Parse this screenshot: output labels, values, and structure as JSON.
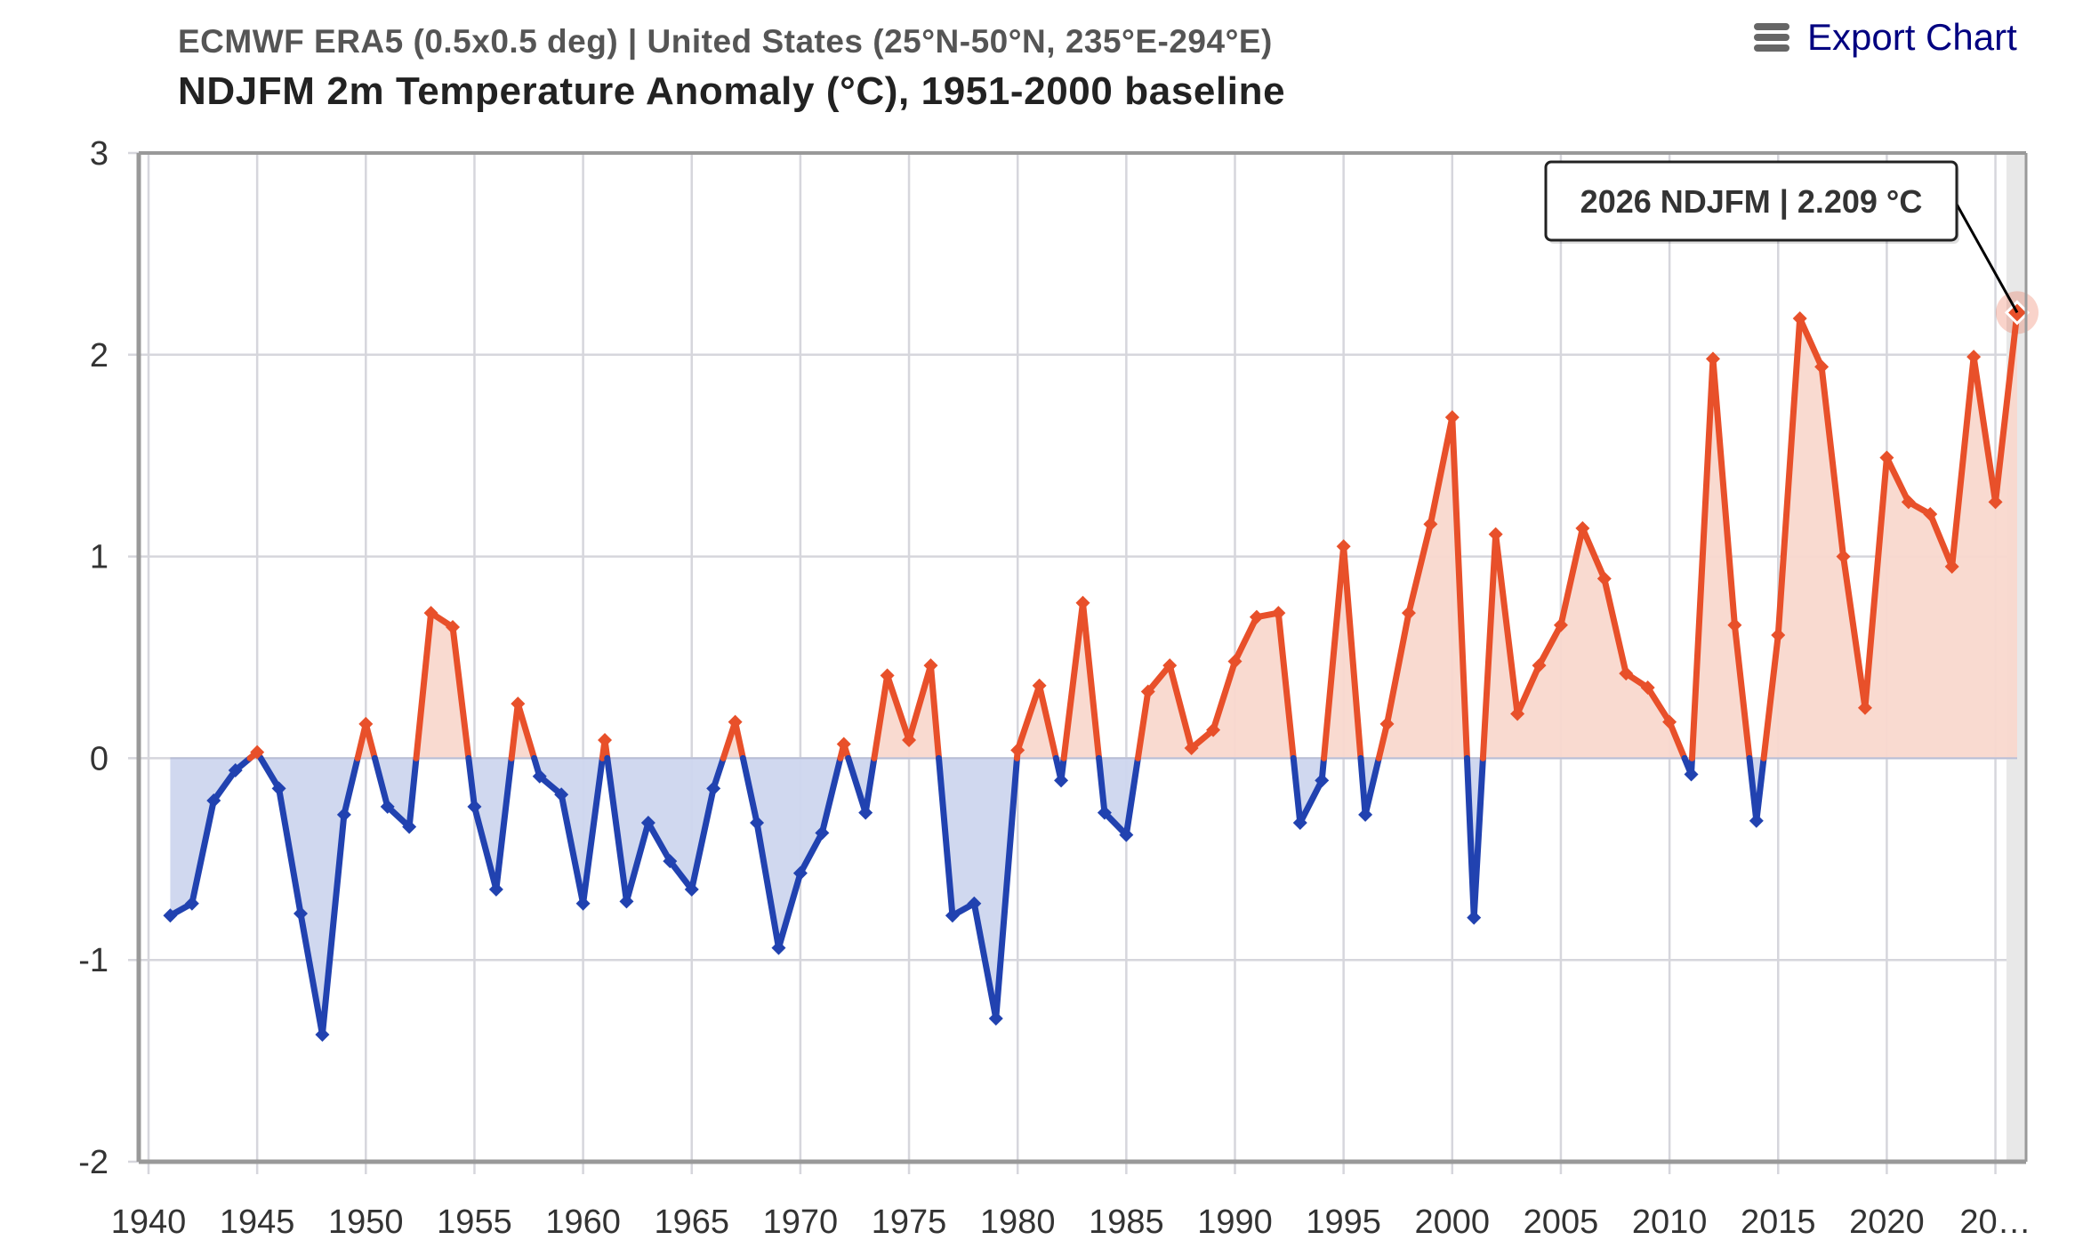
{
  "header": {
    "subtitle": "ECMWF ERA5 (0.5x0.5 deg) | United States (25°N-50°N, 235°E-294°E)",
    "title": "NDJFM 2m Temperature Anomaly (°C), 1951-2000 baseline"
  },
  "toolbar": {
    "export_label": "Export Chart",
    "export_icon": "hamburger-menu-icon"
  },
  "colors": {
    "positive_line": "#E8502A",
    "positive_fill": "#F9D8CE",
    "negative_line": "#2142B0",
    "negative_fill": "#CDD6EE",
    "grid": "#D6D6DC",
    "axis": "#999999",
    "hover_band": "#E8E8E8",
    "export_text": "#000080"
  },
  "tooltip": {
    "text": "2026 NDJFM | 2.209 °C",
    "year": 2026
  },
  "chart_data": {
    "type": "area",
    "title": "NDJFM 2m Temperature Anomaly (°C), 1951-2000 baseline",
    "subtitle": "ECMWF ERA5 (0.5x0.5 deg) | United States (25°N-50°N, 235°E-294°E)",
    "xlabel": "",
    "ylabel": "",
    "xlim": [
      1939.6,
      2027.0
    ],
    "ylim": [
      -2,
      3
    ],
    "grid": true,
    "legend": "none",
    "yticks": [
      3,
      2,
      1,
      0,
      -1,
      -2
    ],
    "xticks": [
      1940,
      1945,
      1950,
      1955,
      1960,
      1965,
      1970,
      1975,
      1980,
      1985,
      1990,
      1995,
      2000,
      2005,
      2010,
      2015,
      2020,
      2025
    ],
    "xtick_labels": [
      "1940",
      "1945",
      "1950",
      "1955",
      "1960",
      "1965",
      "1970",
      "1975",
      "1980",
      "1985",
      "1990",
      "1995",
      "2000",
      "2005",
      "2010",
      "2015",
      "2020",
      "20…"
    ],
    "threshold": 0,
    "series": [
      {
        "name": "NDJFM anomaly",
        "x": [
          1941,
          1942,
          1943,
          1944,
          1945,
          1946,
          1947,
          1948,
          1949,
          1950,
          1951,
          1952,
          1953,
          1954,
          1955,
          1956,
          1957,
          1958,
          1959,
          1960,
          1961,
          1962,
          1963,
          1964,
          1965,
          1966,
          1967,
          1968,
          1969,
          1970,
          1971,
          1972,
          1973,
          1974,
          1975,
          1976,
          1977,
          1978,
          1979,
          1980,
          1981,
          1982,
          1983,
          1984,
          1985,
          1986,
          1987,
          1988,
          1989,
          1990,
          1991,
          1992,
          1993,
          1994,
          1995,
          1996,
          1997,
          1998,
          1999,
          2000,
          2001,
          2002,
          2003,
          2004,
          2005,
          2006,
          2007,
          2008,
          2009,
          2010,
          2011,
          2012,
          2013,
          2014,
          2015,
          2016,
          2017,
          2018,
          2019,
          2020,
          2021,
          2022,
          2023,
          2024,
          2025,
          2026
        ],
        "values": [
          -0.78,
          -0.72,
          -0.21,
          -0.06,
          0.03,
          -0.15,
          -0.77,
          -1.37,
          -0.28,
          0.17,
          -0.24,
          -0.34,
          0.72,
          0.65,
          -0.24,
          -0.65,
          0.27,
          -0.09,
          -0.18,
          -0.72,
          0.09,
          -0.71,
          -0.32,
          -0.51,
          -0.65,
          -0.15,
          0.18,
          -0.32,
          -0.94,
          -0.57,
          -0.37,
          0.07,
          -0.27,
          0.41,
          0.09,
          0.46,
          -0.78,
          -0.72,
          -1.29,
          0.04,
          0.36,
          -0.11,
          0.77,
          -0.27,
          -0.38,
          0.33,
          0.46,
          0.05,
          0.14,
          0.48,
          0.7,
          0.72,
          -0.32,
          -0.11,
          1.05,
          -0.28,
          0.17,
          0.72,
          1.16,
          1.69,
          -0.79,
          1.11,
          0.22,
          0.46,
          0.66,
          1.14,
          0.89,
          0.42,
          0.35,
          0.18,
          -0.08,
          1.98,
          0.66,
          -0.31,
          0.61,
          2.18,
          1.94,
          1.0,
          0.25,
          1.49,
          1.27,
          1.21,
          0.95,
          1.99,
          1.27,
          2.209
        ]
      }
    ],
    "highlighted_point": {
      "x": 2026,
      "y": 2.209,
      "label": "2026 NDJFM | 2.209 °C"
    }
  }
}
